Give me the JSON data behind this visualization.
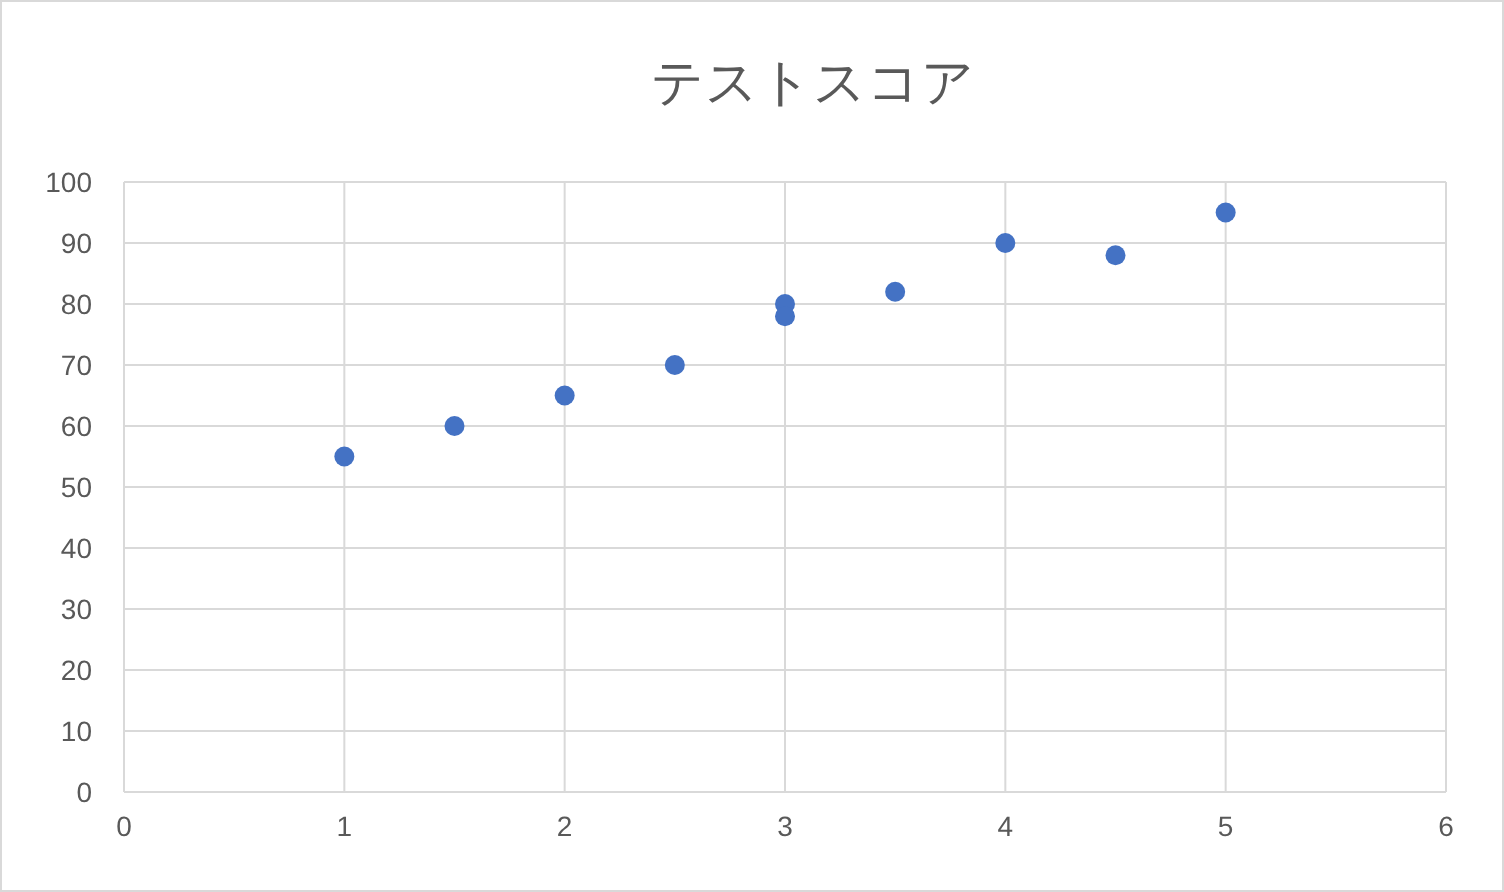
{
  "chart_data": {
    "type": "scatter",
    "title": "テストスコア",
    "x": [
      1,
      1.5,
      2,
      2.5,
      3,
      3,
      3.5,
      4,
      4.5,
      5
    ],
    "values": [
      55,
      60,
      65,
      70,
      80,
      78,
      82,
      90,
      88,
      95
    ],
    "color": "#4472c4",
    "marker": "circle",
    "xlim": [
      0,
      6
    ],
    "xticks": [
      0,
      1,
      2,
      3,
      4,
      5,
      6
    ],
    "ylim": [
      0,
      100
    ],
    "yticks": [
      0,
      10,
      20,
      30,
      40,
      50,
      60,
      70,
      80,
      90,
      100
    ],
    "grid": true
  }
}
